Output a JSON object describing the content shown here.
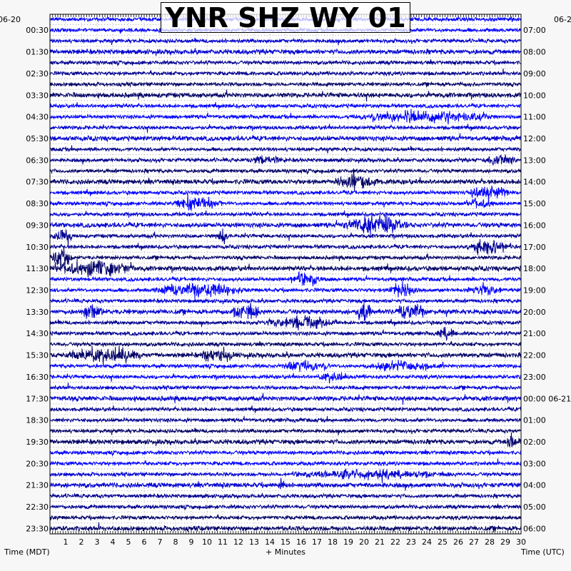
{
  "chart_data": {
    "type": "line",
    "title": "YNR SHZ WY 01",
    "xlabel": "+ Minutes",
    "ylabel_left": "Time (MDT)",
    "ylabel_right": "Time (UTC)",
    "date_left": "06-20",
    "date_right": "06-2",
    "xlim": [
      0,
      30
    ],
    "x_ticks": [
      "1",
      "2",
      "3",
      "4",
      "5",
      "6",
      "7",
      "8",
      "9",
      "10",
      "11",
      "12",
      "13",
      "14",
      "15",
      "16",
      "17",
      "18",
      "19",
      "20",
      "21",
      "22",
      "23",
      "24",
      "25",
      "26",
      "27",
      "28",
      "29",
      "30"
    ],
    "left_labels": [
      "00:30",
      "01:30",
      "02:30",
      "03:30",
      "04:30",
      "05:30",
      "06:30",
      "07:30",
      "08:30",
      "09:30",
      "10:30",
      "11:30",
      "12:30",
      "13:30",
      "14:30",
      "15:30",
      "16:30",
      "17:30",
      "18:30",
      "19:30",
      "20:30",
      "21:30",
      "22:30",
      "23:30"
    ],
    "right_labels": [
      "07:00",
      "08:00",
      "09:00",
      "10:00",
      "11:00",
      "12:00",
      "13:00",
      "14:00",
      "15:00",
      "16:00",
      "17:00",
      "18:00",
      "19:00",
      "20:00",
      "21:00",
      "22:00",
      "23:00",
      "00:00 06-21",
      "01:00",
      "02:00",
      "03:00",
      "04:00",
      "05:00",
      "06:00"
    ],
    "trace_count": 48,
    "trace_colors": [
      "#0000ff",
      "#0000d0",
      "#000090",
      "#000066"
    ],
    "events": [
      {
        "trace": 9,
        "from": 19,
        "to": 28.5,
        "amp": 2.2
      },
      {
        "trace": 13,
        "from": 12.5,
        "to": 15,
        "amp": 1.6
      },
      {
        "trace": 13,
        "from": 27.5,
        "to": 30,
        "amp": 1.8
      },
      {
        "trace": 15,
        "from": 18,
        "to": 21,
        "amp": 2.5
      },
      {
        "trace": 16,
        "from": 26.5,
        "to": 29.5,
        "amp": 2.5
      },
      {
        "trace": 17,
        "from": 7.5,
        "to": 11,
        "amp": 3
      },
      {
        "trace": 17,
        "from": 26.5,
        "to": 28.5,
        "amp": 2
      },
      {
        "trace": 19,
        "from": 18.5,
        "to": 23,
        "amp": 2.8
      },
      {
        "trace": 20,
        "from": 0,
        "to": 1.5,
        "amp": 3
      },
      {
        "trace": 20,
        "from": 10.5,
        "to": 11.5,
        "amp": 3
      },
      {
        "trace": 21,
        "from": 26.5,
        "to": 29.5,
        "amp": 3.5
      },
      {
        "trace": 22,
        "from": 0,
        "to": 1.5,
        "amp": 4
      },
      {
        "trace": 23,
        "from": 0,
        "to": 5.5,
        "amp": 2.5
      },
      {
        "trace": 24,
        "from": 15,
        "to": 17.5,
        "amp": 2.5
      },
      {
        "trace": 25,
        "from": 6.5,
        "to": 12.5,
        "amp": 3
      },
      {
        "trace": 25,
        "from": 21.5,
        "to": 23.5,
        "amp": 3
      },
      {
        "trace": 25,
        "from": 26.5,
        "to": 29,
        "amp": 2
      },
      {
        "trace": 27,
        "from": 2,
        "to": 3.5,
        "amp": 2.5
      },
      {
        "trace": 27,
        "from": 11.5,
        "to": 13.5,
        "amp": 3
      },
      {
        "trace": 27,
        "from": 19.5,
        "to": 20.5,
        "amp": 3
      },
      {
        "trace": 27,
        "from": 22,
        "to": 24,
        "amp": 3
      },
      {
        "trace": 28,
        "from": 13.5,
        "to": 18.5,
        "amp": 2.5
      },
      {
        "trace": 29,
        "from": 24.5,
        "to": 26,
        "amp": 2.5
      },
      {
        "trace": 31,
        "from": 1,
        "to": 6,
        "amp": 2.5
      },
      {
        "trace": 31,
        "from": 9.5,
        "to": 12,
        "amp": 2
      },
      {
        "trace": 32,
        "from": 14.5,
        "to": 18,
        "amp": 2
      },
      {
        "trace": 33,
        "from": 17,
        "to": 19,
        "amp": 2.2
      },
      {
        "trace": 32,
        "from": 20,
        "to": 25,
        "amp": 1.6
      },
      {
        "trace": 39,
        "from": 29,
        "to": 30,
        "amp": 2.5
      },
      {
        "trace": 42,
        "from": 15,
        "to": 26,
        "amp": 1.5
      },
      {
        "trace": 43,
        "from": 14.5,
        "to": 15,
        "amp": 1.8
      }
    ]
  }
}
